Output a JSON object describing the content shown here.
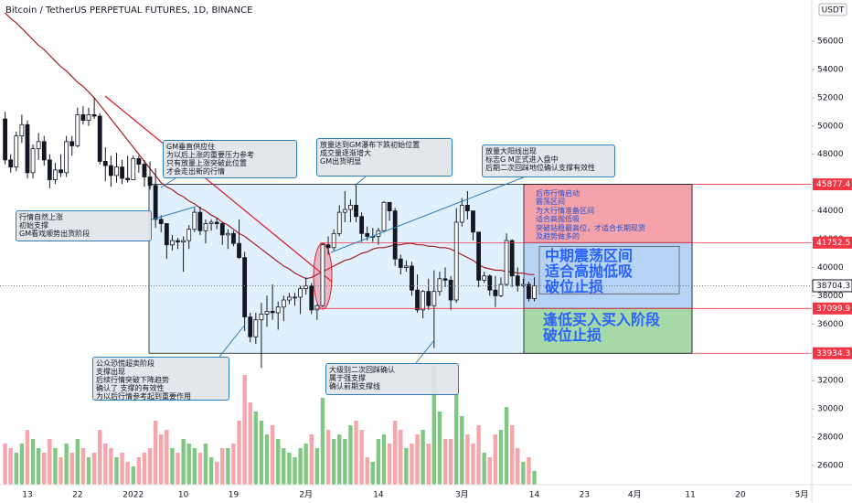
{
  "chart_data": {
    "type": "candlestick",
    "title": "Bitcoin / TetherUS PERPETUAL FUTURES, 1D, BINANCE",
    "currency": "USDT",
    "categories": [
      null,
      null,
      null,
      null,
      "13",
      null,
      null,
      null,
      null,
      null,
      null,
      null,
      null,
      "22",
      null,
      null,
      null,
      null,
      null,
      null,
      null,
      null,
      null,
      "2022",
      null,
      null,
      null,
      null,
      null,
      null,
      null,
      null,
      "10",
      null,
      null,
      null,
      null,
      null,
      null,
      null,
      null,
      "19",
      null,
      null,
      null,
      null,
      null,
      null,
      null,
      null,
      null,
      null,
      null,
      null,
      "2月",
      null,
      null,
      null,
      null,
      null,
      null,
      null,
      null,
      null,
      null,
      null,
      null,
      "14",
      null,
      null,
      null,
      null,
      null,
      null,
      null,
      null,
      null,
      null,
      null,
      null,
      null,
      null,
      "3月",
      null,
      null,
      null,
      null,
      null,
      null,
      null,
      null,
      null,
      null,
      null,
      null,
      "14",
      null,
      null,
      null,
      null,
      null,
      null,
      null,
      null,
      "23",
      null,
      null,
      null,
      null,
      null,
      null,
      null,
      null,
      "4月",
      null,
      null,
      null,
      null,
      null,
      null,
      null,
      null,
      null,
      "11",
      null,
      null,
      null,
      null,
      null,
      null,
      null,
      null,
      "20",
      null,
      null,
      null,
      null,
      null,
      null,
      null,
      null,
      null,
      null,
      "5月"
    ],
    "open": [
      50500,
      47600,
      47100,
      49300,
      50100,
      46700,
      48400,
      48900,
      47600,
      46200,
      46900,
      46700,
      48900,
      48600,
      50800,
      50400,
      50800,
      50700,
      47500,
      47200,
      46500,
      47100,
      46300,
      46200,
      47700,
      47300,
      46400,
      45800,
      43400,
      43100,
      41600,
      41900,
      41800,
      41900,
      42700,
      43900,
      42600,
      43100,
      43200,
      43100,
      42300,
      42400,
      41700,
      40700,
      36500,
      35100,
      36300,
      36700,
      36900,
      36800,
      37200,
      37700,
      37900,
      37900,
      38500,
      38700,
      37000,
      37300,
      41600,
      41400,
      42400,
      43900,
      44100,
      44400,
      43600,
      42400,
      42200,
      42200,
      42600,
      44600,
      44000,
      40600,
      40000,
      40100,
      38400,
      37000,
      38300,
      37300,
      38300,
      39200,
      39100,
      37700,
      43200,
      44400,
      44000,
      42500,
      39100,
      39400,
      38400,
      38000,
      38800,
      41900,
      39400,
      38700,
      38800,
      37800,
      null,
      null,
      null,
      null,
      null,
      null,
      null,
      null,
      null,
      null,
      null,
      null,
      null,
      null,
      null,
      null,
      null,
      null,
      null,
      null,
      null,
      null,
      null,
      null,
      null,
      null,
      null,
      null,
      null,
      null,
      null,
      null,
      null,
      null,
      null,
      null,
      null,
      null,
      null,
      null,
      null,
      null,
      null,
      null,
      null,
      null,
      null,
      null
    ],
    "high": [
      51000,
      48000,
      49600,
      50800,
      50400,
      48700,
      49500,
      49300,
      48000,
      47400,
      48000,
      49300,
      49300,
      51300,
      51400,
      51300,
      52000,
      50900,
      48500,
      47900,
      48100,
      47600,
      47900,
      47900,
      47900,
      47600,
      47500,
      47000,
      43700,
      43100,
      42300,
      42100,
      42200,
      43000,
      44200,
      44300,
      43400,
      43400,
      43500,
      43200,
      42700,
      42600,
      43400,
      41100,
      36800,
      36800,
      37500,
      38000,
      38800,
      37600,
      38000,
      38200,
      38200,
      38700,
      39300,
      38900,
      37400,
      41700,
      42200,
      42700,
      44400,
      45400,
      44800,
      45800,
      43900,
      42900,
      42800,
      42800,
      44700,
      44600,
      44200,
      40900,
      40500,
      40400,
      39500,
      38400,
      39200,
      39800,
      39700,
      40000,
      39400,
      44200,
      44900,
      45400,
      44000,
      42500,
      39700,
      39500,
      39400,
      39300,
      42400,
      42000,
      40000,
      39200,
      39000,
      39300,
      null,
      null,
      null,
      null,
      null,
      null,
      null,
      null,
      null,
      null,
      null,
      null,
      null,
      null,
      null,
      null,
      null,
      null,
      null,
      null,
      null,
      null,
      null,
      null,
      null,
      null,
      null,
      null,
      null,
      null,
      null,
      null,
      null,
      null,
      null,
      null,
      null,
      null,
      null,
      null,
      null,
      null,
      null,
      null,
      null,
      null,
      null,
      null
    ],
    "low": [
      47300,
      46700,
      46800,
      48800,
      46300,
      46300,
      47600,
      47200,
      45600,
      45900,
      46400,
      46400,
      47900,
      48500,
      50100,
      50000,
      50500,
      47300,
      46100,
      45700,
      46000,
      45900,
      46000,
      46200,
      46700,
      45700,
      45500,
      42800,
      42500,
      40600,
      41200,
      41300,
      39700,
      41300,
      42500,
      42300,
      41700,
      42600,
      42700,
      41600,
      41300,
      41500,
      40600,
      35500,
      34700,
      34600,
      32900,
      35800,
      36300,
      35600,
      36200,
      37400,
      37300,
      36700,
      38100,
      36700,
      36300,
      37200,
      40900,
      41200,
      42200,
      43200,
      43200,
      43200,
      41800,
      41900,
      41800,
      41600,
      42500,
      43300,
      40100,
      39500,
      39700,
      38000,
      36800,
      36400,
      37000,
      34300,
      38000,
      38600,
      37000,
      37500,
      42900,
      43400,
      41900,
      38600,
      38900,
      38000,
      37200,
      37900,
      38700,
      38600,
      38300,
      38600,
      37600,
      37600,
      null,
      null,
      null,
      null,
      null,
      null,
      null,
      null,
      null,
      null,
      null,
      null,
      null,
      null,
      null,
      null,
      null,
      null,
      null,
      null,
      null,
      null,
      null,
      null,
      null,
      null,
      null,
      null,
      null,
      null,
      null,
      null,
      null,
      null,
      null,
      null,
      null,
      null,
      null,
      null,
      null,
      null,
      null,
      null,
      null,
      null,
      null,
      null
    ],
    "close": [
      47600,
      47100,
      49300,
      50100,
      46700,
      48400,
      48900,
      47600,
      46200,
      46900,
      46700,
      48900,
      48600,
      50800,
      50400,
      50800,
      50700,
      47500,
      47200,
      46500,
      47100,
      46300,
      46200,
      47700,
      47300,
      46400,
      45800,
      43400,
      43100,
      41600,
      41900,
      41800,
      41900,
      42700,
      43900,
      42600,
      43100,
      43200,
      43100,
      42300,
      42400,
      41700,
      40700,
      36500,
      35100,
      36300,
      36700,
      36900,
      36800,
      37200,
      37700,
      37900,
      37900,
      38500,
      38700,
      37000,
      37300,
      41600,
      41400,
      42400,
      43900,
      44100,
      44400,
      43600,
      42400,
      42200,
      42200,
      42600,
      44600,
      44000,
      40600,
      40000,
      40100,
      38400,
      37000,
      38300,
      37300,
      38300,
      39200,
      39100,
      37700,
      43200,
      44400,
      44000,
      42500,
      39100,
      39400,
      38400,
      38000,
      38800,
      41900,
      39400,
      38700,
      38800,
      37800,
      38700,
      null,
      null,
      null,
      null,
      null,
      null,
      null,
      null,
      null,
      null,
      null,
      null,
      null,
      null,
      null,
      null,
      null,
      null,
      null,
      null,
      null,
      null,
      null,
      null,
      null,
      null,
      null,
      null,
      null,
      null,
      null,
      null,
      null,
      null,
      null,
      null,
      null,
      null,
      null,
      null,
      null,
      null,
      null,
      null,
      null,
      null,
      null,
      null
    ],
    "volume": [
      45,
      40,
      35,
      45,
      60,
      50,
      40,
      35,
      50,
      40,
      30,
      45,
      35,
      50,
      40,
      30,
      35,
      60,
      45,
      40,
      30,
      35,
      25,
      20,
      30,
      35,
      40,
      70,
      55,
      60,
      40,
      35,
      50,
      45,
      40,
      35,
      45,
      30,
      25,
      40,
      40,
      45,
      70,
      120,
      90,
      80,
      70,
      55,
      65,
      50,
      40,
      35,
      30,
      40,
      45,
      55,
      40,
      95,
      60,
      50,
      55,
      50,
      65,
      70,
      60,
      30,
      25,
      50,
      55,
      45,
      70,
      60,
      40,
      45,
      55,
      60,
      45,
      130,
      80,
      50,
      50,
      100,
      75,
      55,
      45,
      65,
      35,
      30,
      55,
      60,
      85,
      65,
      40,
      25,
      30,
      15,
      null,
      null,
      null,
      null,
      null,
      null,
      null,
      null,
      null,
      null,
      null,
      null,
      null,
      null,
      null,
      null,
      null,
      null,
      null,
      null,
      null,
      null,
      null,
      null,
      null,
      null,
      null,
      null,
      null,
      null,
      null,
      null,
      null,
      null,
      null,
      null,
      null,
      null,
      null,
      null,
      null,
      null,
      null,
      null,
      null,
      null,
      null,
      null
    ],
    "moving_average": {
      "color": "#a51d24",
      "values": [
        58000,
        57600,
        57300,
        56900,
        56500,
        56100,
        55700,
        55400,
        55000,
        54600,
        54200,
        53900,
        53500,
        53100,
        52800,
        52400,
        52000,
        51500,
        51000,
        50500,
        50000,
        49500,
        49000,
        48500,
        48000,
        47500,
        47000,
        46500,
        46000,
        45700,
        45500,
        45200,
        45000,
        44700,
        44500,
        44200,
        44000,
        43700,
        43500,
        43200,
        43000,
        42700,
        42400,
        42200,
        41900,
        41600,
        41300,
        41000,
        40700,
        40400,
        40100,
        39900,
        39600,
        39400,
        39200,
        39300,
        39500,
        39700,
        39900,
        40100,
        40300,
        40500,
        40600,
        40800,
        41000,
        41100,
        41300,
        41400,
        41400,
        41500,
        41600,
        41600,
        41700,
        41700,
        41600,
        41600,
        41500,
        41500,
        41400,
        41400,
        41300,
        41100,
        40900,
        40700,
        40500,
        40200,
        40000,
        39900,
        39800,
        39800,
        39700,
        39700,
        39600,
        39600,
        39500,
        39500,
        null,
        null,
        null,
        null,
        null,
        null,
        null,
        null,
        null,
        null,
        null,
        null,
        null,
        null,
        null,
        null,
        null,
        null,
        null,
        null,
        null,
        null,
        null,
        null,
        null,
        null,
        null,
        null,
        null,
        null,
        null,
        null,
        null,
        null,
        null,
        null,
        null,
        null,
        null,
        null,
        null,
        null,
        null,
        null,
        null,
        null,
        null,
        null
      ]
    },
    "colors": {
      "up": "#ffffff",
      "down": "#131722",
      "outline": "#131722",
      "volume_up": "#81c784",
      "volume_down": "#f7a4aa",
      "level": "#f23645"
    },
    "ylim": [
      24640,
      58910
    ],
    "yticks": [
      26000,
      28000,
      30000,
      32000,
      34000,
      36000,
      38000,
      40000,
      42000,
      44000,
      46000,
      48000,
      50000,
      52000,
      54000,
      56000
    ],
    "last_price": 38704.3,
    "levels": [
      45877.4,
      41752.5,
      37099.9,
      33934.3
    ],
    "annotations": [
      {
        "lines": [
          "GM垂直供应住",
          "为以后上涨的重要压力参考",
          "只有放量上涨突破此位置",
          "才会走出新的行情"
        ]
      },
      {
        "lines": [
          "放量达到GM瀑布下跌初始位置",
          "成交量逐渐增大",
          "GM出货明显"
        ]
      },
      {
        "lines": [
          "放量大阳线出现",
          "标志G M正式进入盘中",
          "后期二次回踩地位确认支撑有效性"
        ]
      },
      {
        "lines": [
          "行情自然上涨",
          "初始支撑",
          "GM看戏顺势出货阶段"
        ]
      },
      {
        "lines": [
          "公众恐慌超卖阶段",
          "支撑出现",
          "后续行情突破下降趋势",
          "确认了 支撑的有效性",
          "为以后行情参考起到重要作用"
        ]
      },
      {
        "lines": [
          "大级别二次回踩确认",
          "属于强支撑",
          "确认前期支撑线"
        ]
      }
    ],
    "zone_notes": [
      {
        "lines": [
          "后市行情启动",
          "震荡区间",
          "为大行情准备区间",
          "适合高抛低吸",
          "突破站稳最高位，才适合长期现货",
          "及趋势做多的"
        ]
      },
      {
        "lines": [
          "中期震荡区间",
          "适合高抛低吸",
          "破位止损"
        ]
      },
      {
        "lines": [
          "逢低买入买入阶段",
          "破位止损"
        ]
      }
    ]
  }
}
